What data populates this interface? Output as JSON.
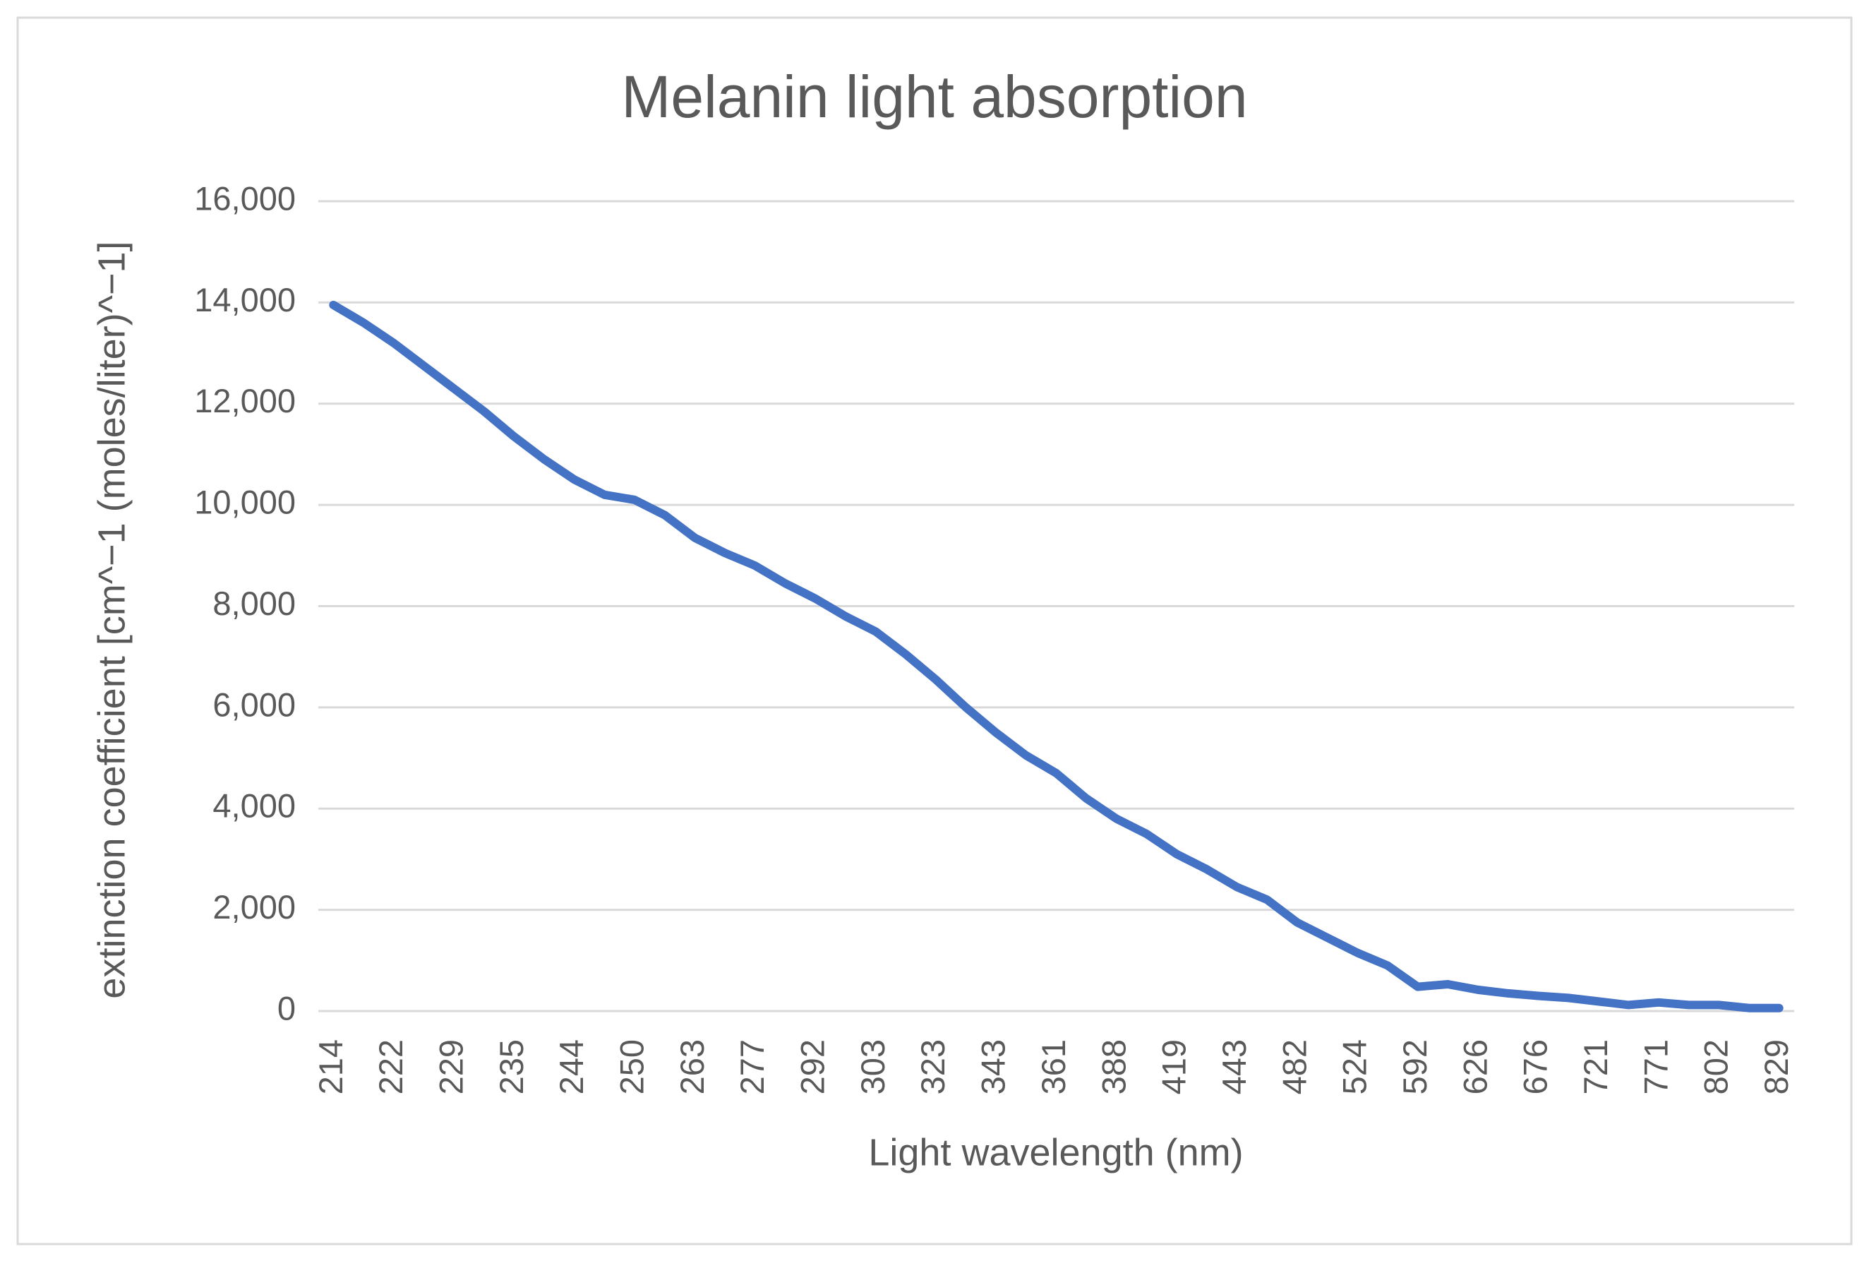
{
  "chart_data": {
    "type": "line",
    "title": "Melanin light absorption",
    "x_label": "Light wavelength (nm)",
    "y_label": "extinction coefficient [cm^−1 (moles/liter)^−1]",
    "categories": [
      "214",
      null,
      "222",
      null,
      "229",
      null,
      "235",
      null,
      "244",
      null,
      "250",
      null,
      "263",
      null,
      "277",
      null,
      "292",
      null,
      "303",
      null,
      "323",
      null,
      "343",
      null,
      "361",
      null,
      "388",
      null,
      "419",
      null,
      "443",
      null,
      "482",
      null,
      "524",
      null,
      "592",
      null,
      "626",
      null,
      "676",
      null,
      "721",
      null,
      "771",
      null,
      "802",
      null,
      "829"
    ],
    "series": [
      {
        "name": "Melanin",
        "color": "#4472c4",
        "values": [
          13950,
          13600,
          13200,
          12750,
          12300,
          11850,
          11350,
          10900,
          10500,
          10200,
          10100,
          9800,
          9350,
          9050,
          8800,
          8450,
          8150,
          7800,
          7500,
          7050,
          6550,
          6000,
          5500,
          5050,
          4700,
          4200,
          3800,
          3500,
          3100,
          2800,
          2450,
          2200,
          1750,
          1450,
          1150,
          900,
          480,
          530,
          420,
          350,
          300,
          260,
          190,
          120,
          170,
          120,
          120,
          60,
          60
        ]
      }
    ],
    "ylim": [
      0,
      16000
    ],
    "yticks": [
      0,
      {
        "value": 2000,
        "label": "2,000"
      },
      {
        "value": 4000,
        "label": "4,000"
      },
      {
        "value": 6000,
        "label": "6,000"
      },
      {
        "value": 8000,
        "label": "8,000"
      },
      {
        "value": 10000,
        "label": "10,000"
      },
      {
        "value": 12000,
        "label": "12,000"
      },
      {
        "value": 14000,
        "label": "14,000"
      },
      {
        "value": 16000,
        "label": "16,000"
      }
    ],
    "grid": true
  }
}
